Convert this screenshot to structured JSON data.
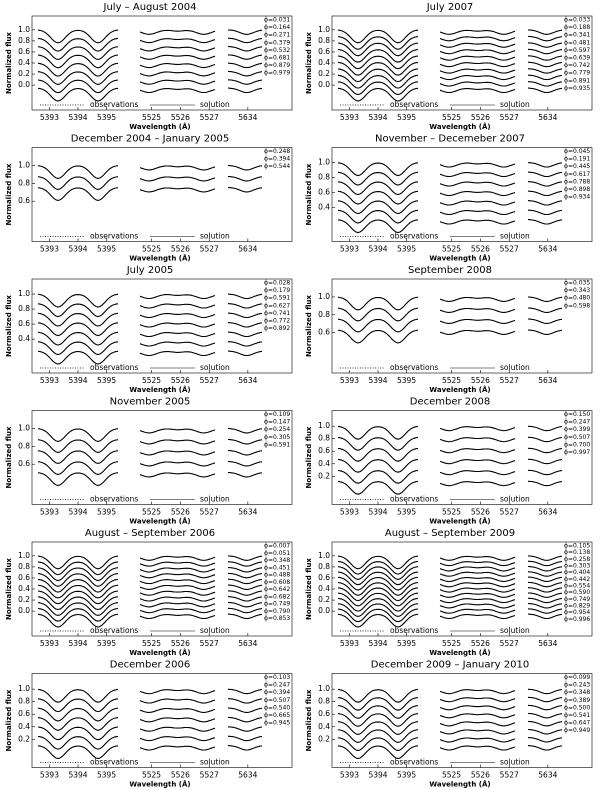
{
  "ylabel": "Normalized flux",
  "xlabel": "Wavelength (Å)",
  "legend": [
    "observations",
    "solution"
  ],
  "segments": [
    {
      "xlim": [
        5392.6,
        5395.4
      ],
      "xticks": [
        5393,
        5394,
        5395
      ]
    },
    {
      "xlim": [
        5524.6,
        5527.2
      ],
      "xticks": [
        5525,
        5526,
        5527
      ]
    },
    {
      "xlim": [
        5633.3,
        5634.5
      ],
      "xticks": [
        5634
      ]
    }
  ],
  "panels": [
    {
      "title": "July – August 2004",
      "ylim": [
        -0.45,
        1.25
      ],
      "yticks": [
        {
          "value": 1,
          "label": "1.0"
        },
        {
          "value": 0.8,
          "label": "0.8"
        },
        {
          "value": 0.6,
          "label": "0.6"
        },
        {
          "value": 0.4,
          "label": "0.4"
        },
        {
          "value": 0.2,
          "label": "0.2"
        },
        {
          "value": 0,
          "label": "0.0"
        }
      ],
      "phases": [
        "ϕ=0.031",
        "ϕ=0.164",
        "ϕ=0.271",
        "ϕ=0.379",
        "ϕ=0.532",
        "ϕ=0.681",
        "ϕ=0.879",
        "ϕ=0.979"
      ]
    },
    {
      "title": "December 2004 – January 2005",
      "ylim": [
        0.15,
        1.2
      ],
      "yticks": [
        {
          "value": 1,
          "label": "1.0"
        },
        {
          "value": 0.8,
          "label": "0.8"
        },
        {
          "value": 0.6,
          "label": "0.6"
        }
      ],
      "phases": [
        "ϕ=0.248",
        "ϕ=0.394",
        "ϕ=0.544"
      ]
    },
    {
      "title": "July 2005",
      "ylim": [
        -0.05,
        1.2
      ],
      "yticks": [
        {
          "value": 1,
          "label": "1.0"
        },
        {
          "value": 0.8,
          "label": "0.8"
        },
        {
          "value": 0.6,
          "label": "0.6"
        },
        {
          "value": 0.4,
          "label": "0.4"
        }
      ],
      "phases": [
        "ϕ=0.028",
        "ϕ=0.179",
        "ϕ=0.591",
        "ϕ=0.627",
        "ϕ=0.741",
        "ϕ=0.772",
        "ϕ=0.892"
      ]
    },
    {
      "title": "November 2005",
      "ylim": [
        0.15,
        1.2
      ],
      "yticks": [
        {
          "value": 1,
          "label": "1.0"
        },
        {
          "value": 0.8,
          "label": "0.8"
        },
        {
          "value": 0.6,
          "label": "0.6"
        }
      ],
      "phases": [
        "ϕ=0.109",
        "ϕ=0.147",
        "ϕ=0.254",
        "ϕ=0.305",
        "ϕ=0.591"
      ]
    },
    {
      "title": "August – September 2006",
      "ylim": [
        -0.45,
        1.25
      ],
      "yticks": [
        {
          "value": 1,
          "label": "1.0"
        },
        {
          "value": 0.8,
          "label": "0.8"
        },
        {
          "value": 0.6,
          "label": "0.6"
        },
        {
          "value": 0.4,
          "label": "0.4"
        },
        {
          "value": 0.2,
          "label": "0.2"
        },
        {
          "value": 0,
          "label": "0.0"
        }
      ],
      "phases": [
        "ϕ=0.007",
        "ϕ=0.051",
        "ϕ=0.348",
        "ϕ=0.451",
        "ϕ=0.488",
        "ϕ=0.608",
        "ϕ=0.642",
        "ϕ=0.682",
        "ϕ=0.749",
        "ϕ=0.790",
        "ϕ=0.853"
      ]
    },
    {
      "title": "December 2006",
      "ylim": [
        -0.25,
        1.25
      ],
      "yticks": [
        {
          "value": 1,
          "label": "1.0"
        },
        {
          "value": 0.8,
          "label": "0.8"
        },
        {
          "value": 0.6,
          "label": "0.6"
        },
        {
          "value": 0.4,
          "label": "0.4"
        },
        {
          "value": 0.2,
          "label": "0.2"
        }
      ],
      "phases": [
        "ϕ=0.103",
        "ϕ=0.247",
        "ϕ=0.394",
        "ϕ=0.507",
        "ϕ=0.540",
        "ϕ=0.665",
        "ϕ=0.945"
      ]
    },
    {
      "title": "July 2007",
      "ylim": [
        -0.45,
        1.25
      ],
      "yticks": [
        {
          "value": 1,
          "label": "1.0"
        },
        {
          "value": 0.8,
          "label": "0.8"
        },
        {
          "value": 0.6,
          "label": "0.6"
        },
        {
          "value": 0.4,
          "label": "0.4"
        },
        {
          "value": 0.2,
          "label": "0.2"
        },
        {
          "value": 0,
          "label": "0.0"
        }
      ],
      "phases": [
        "ϕ=0.033",
        "ϕ=0.188",
        "ϕ=0.341",
        "ϕ=0.481",
        "ϕ=0.597",
        "ϕ=0.639",
        "ϕ=0.742",
        "ϕ=0.779",
        "ϕ=0.891",
        "ϕ=0.935"
      ]
    },
    {
      "title": "November – Decemeber 2007",
      "ylim": [
        -0.05,
        1.2
      ],
      "yticks": [
        {
          "value": 1,
          "label": "1.0"
        },
        {
          "value": 0.8,
          "label": "0.8"
        },
        {
          "value": 0.6,
          "label": "0.6"
        },
        {
          "value": 0.4,
          "label": "0.4"
        }
      ],
      "phases": [
        "ϕ=0.045",
        "ϕ=0.191",
        "ϕ=0.445",
        "ϕ=0.617",
        "ϕ=0.788",
        "ϕ=0.898",
        "ϕ=0.934"
      ]
    },
    {
      "title": "September 2008",
      "ylim": [
        0.15,
        1.2
      ],
      "yticks": [
        {
          "value": 1,
          "label": "1.0"
        },
        {
          "value": 0.8,
          "label": "0.8"
        },
        {
          "value": 0.6,
          "label": "0.6"
        }
      ],
      "phases": [
        "ϕ=0.035",
        "ϕ=0.343",
        "ϕ=0.480",
        "ϕ=0.598"
      ]
    },
    {
      "title": "December 2008",
      "ylim": [
        -0.25,
        1.25
      ],
      "yticks": [
        {
          "value": 1,
          "label": "1.0"
        },
        {
          "value": 0.8,
          "label": "0.8"
        },
        {
          "value": 0.6,
          "label": "0.6"
        },
        {
          "value": 0.4,
          "label": "0.4"
        },
        {
          "value": 0.2,
          "label": "0.2"
        }
      ],
      "phases": [
        "ϕ=0.150",
        "ϕ=0.247",
        "ϕ=0.399",
        "ϕ=0.507",
        "ϕ=0.700",
        "ϕ=0.997"
      ]
    },
    {
      "title": "August – September 2009",
      "ylim": [
        -0.45,
        1.25
      ],
      "yticks": [
        {
          "value": 1,
          "label": "1.0"
        },
        {
          "value": 0.8,
          "label": "0.8"
        },
        {
          "value": 0.6,
          "label": "0.6"
        },
        {
          "value": 0.4,
          "label": "0.4"
        },
        {
          "value": 0.2,
          "label": "0.2"
        },
        {
          "value": 0,
          "label": "0.0"
        }
      ],
      "phases": [
        "ϕ=0.105",
        "ϕ=0.138",
        "ϕ=0.258",
        "ϕ=0.303",
        "ϕ=0.404",
        "ϕ=0.442",
        "ϕ=0.554",
        "ϕ=0.590",
        "ϕ=0.749",
        "ϕ=0.829",
        "ϕ=0.954",
        "ϕ=0.996"
      ]
    },
    {
      "title": "December 2009 – January 2010",
      "ylim": [
        -0.25,
        1.25
      ],
      "yticks": [
        {
          "value": 1,
          "label": "1.0"
        },
        {
          "value": 0.8,
          "label": "0.8"
        },
        {
          "value": 0.6,
          "label": "0.6"
        },
        {
          "value": 0.4,
          "label": "0.4"
        },
        {
          "value": 0.2,
          "label": "0.2"
        }
      ],
      "phases": [
        "ϕ=0.099",
        "ϕ=0.243",
        "ϕ=0.348",
        "ϕ=0.389",
        "ϕ=0.500",
        "ϕ=0.541",
        "ϕ=0.647",
        "ϕ=0.949"
      ]
    }
  ]
}
